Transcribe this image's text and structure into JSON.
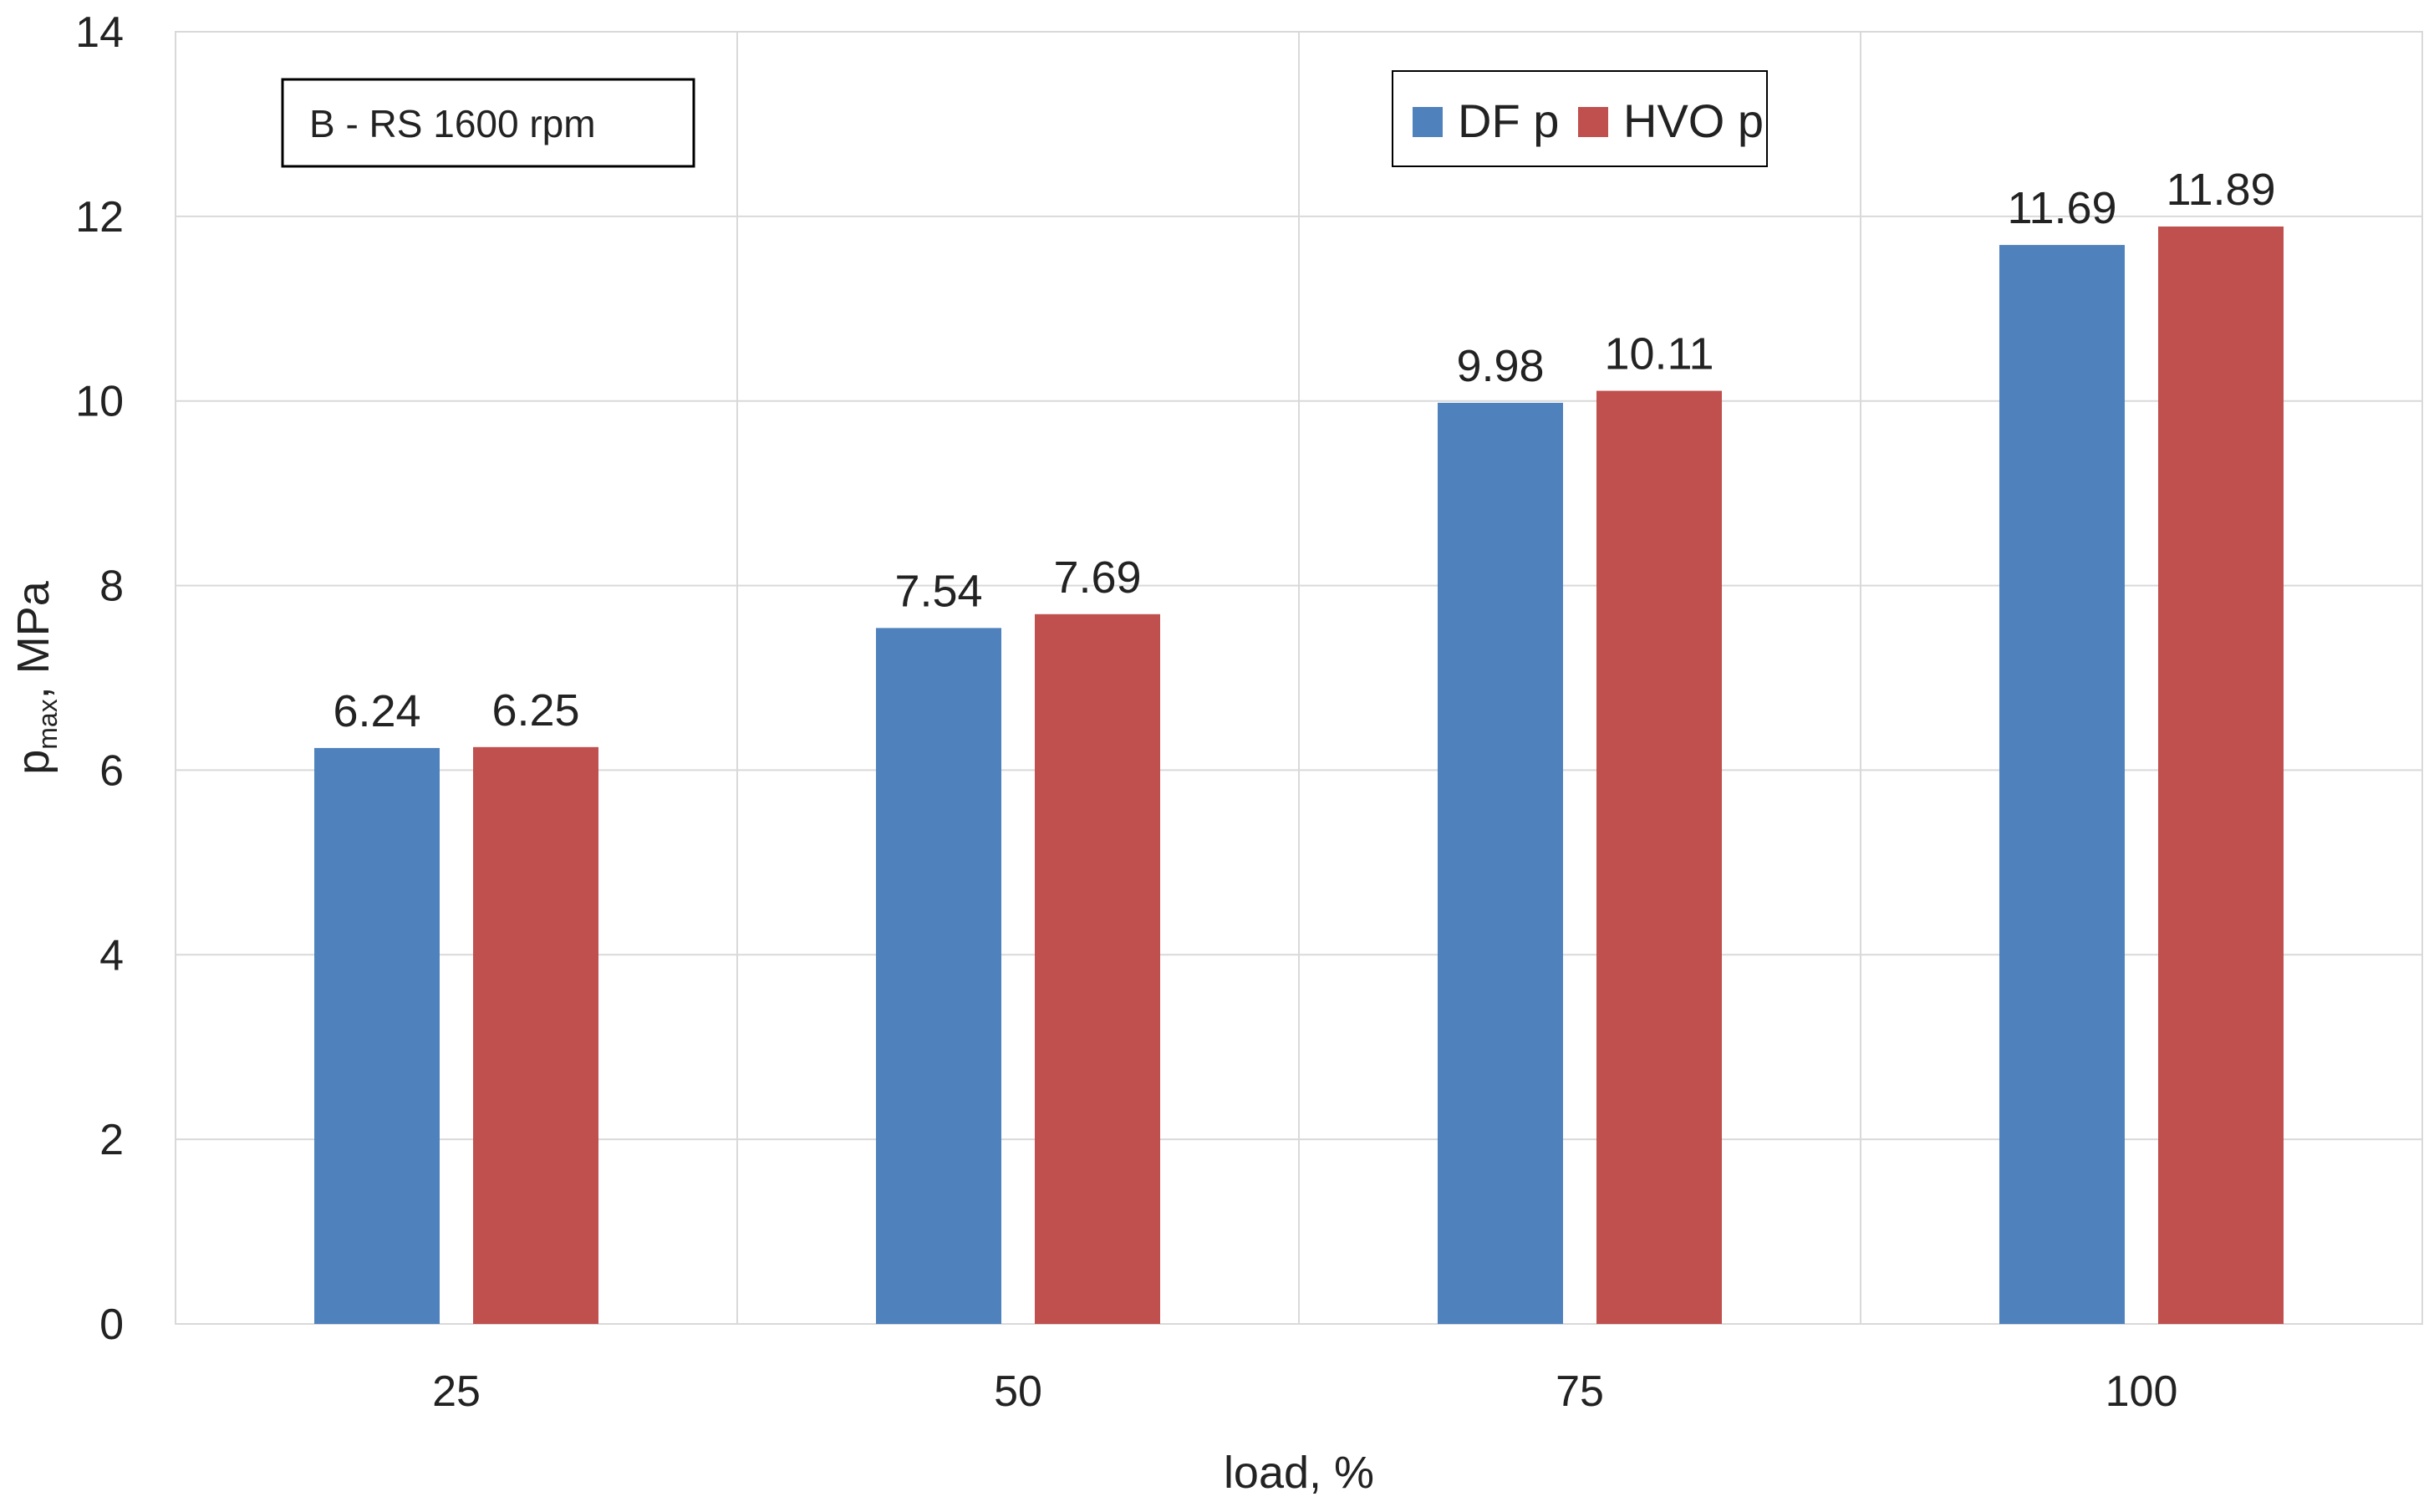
{
  "chart_data": {
    "type": "bar",
    "categories": [
      "25",
      "50",
      "75",
      "100"
    ],
    "series": [
      {
        "name": "DF p",
        "values": [
          6.24,
          7.54,
          9.98,
          11.69
        ],
        "labels": [
          "6.24",
          "7.54",
          "9.98",
          "11.69"
        ],
        "color": "#4F81BD"
      },
      {
        "name": "HVO p",
        "values": [
          6.25,
          7.69,
          10.11,
          11.89
        ],
        "labels": [
          "6.25",
          "7.69",
          "10.11",
          "11.89"
        ],
        "color": "#C0504D"
      }
    ],
    "title": "",
    "xlabel": "load, %",
    "ylabel": {
      "main": "p",
      "sub": "max",
      "suffix": ", MPa"
    },
    "ylim": [
      0,
      14
    ],
    "yticks": [
      0,
      2,
      4,
      6,
      8,
      10,
      12,
      14
    ],
    "ytick_labels": [
      "0",
      "2",
      "4",
      "6",
      "8",
      "10",
      "12",
      "14"
    ],
    "grid": true,
    "legend_position": "top-right",
    "annotation": "B - RS 1600 rpm"
  }
}
